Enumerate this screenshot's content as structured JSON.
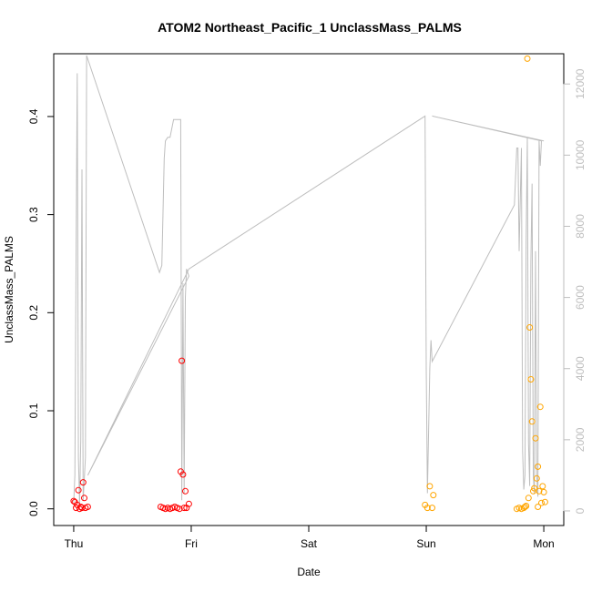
{
  "chart_data": {
    "type": "scatter",
    "title": "ATOM2 Northeast_Pacific_1 UnclassMass_PALMS",
    "xlabel": "Date",
    "ylabel": "UnclassMass_PALMS",
    "x_ticks": [
      "Thu",
      "Fri",
      "Sat",
      "Sun",
      "Mon"
    ],
    "y_ticks": [
      "0.0",
      "0.1",
      "0.2",
      "0.3",
      "0.4"
    ],
    "y2_ticks": [
      "0",
      "2000",
      "4000",
      "6000",
      "8000",
      "10000",
      "12000"
    ],
    "xlim_days": [
      -0.17,
      4.17
    ],
    "ylim": [
      -0.017,
      0.464
    ],
    "y2lim": [
      -410,
      12850
    ],
    "grid": false,
    "colors": {
      "red_series": "#ff0000",
      "orange_series": "#ffa500",
      "altitude_line": "#bebebe",
      "axis": "#000000",
      "y2_axis": "#bebebe"
    },
    "series": [
      {
        "color": "#ff0000",
        "points": [
          [
            0.0,
            0.008
          ],
          [
            0.01,
            0.007
          ],
          [
            0.02,
            0.001
          ],
          [
            0.03,
            0.004
          ],
          [
            0.04,
            0.019
          ],
          [
            0.05,
            0.0
          ],
          [
            0.06,
            0.002
          ],
          [
            0.07,
            0.001
          ],
          [
            0.08,
            0.027
          ],
          [
            0.09,
            0.011
          ],
          [
            0.1,
            0.001
          ],
          [
            0.12,
            0.002
          ],
          [
            0.74,
            0.002
          ],
          [
            0.76,
            0.001
          ],
          [
            0.78,
            0.0
          ],
          [
            0.8,
            0.001
          ],
          [
            0.82,
            0.0
          ],
          [
            0.84,
            0.001
          ],
          [
            0.86,
            0.002
          ],
          [
            0.88,
            0.001
          ],
          [
            0.9,
            0.0
          ],
          [
            0.91,
            0.038
          ],
          [
            0.92,
            0.151
          ],
          [
            0.93,
            0.035
          ],
          [
            0.94,
            0.001
          ],
          [
            0.95,
            0.018
          ],
          [
            0.96,
            0.001
          ],
          [
            0.98,
            0.005
          ]
        ]
      },
      {
        "color": "#ffa500",
        "points": [
          [
            2.99,
            0.004
          ],
          [
            3.01,
            0.001
          ],
          [
            3.03,
            0.023
          ],
          [
            3.05,
            0.001
          ],
          [
            3.06,
            0.014
          ],
          [
            3.77,
            0.0
          ],
          [
            3.79,
            0.001
          ],
          [
            3.81,
            0.0
          ],
          [
            3.83,
            0.001
          ],
          [
            3.84,
            0.002
          ],
          [
            3.85,
            0.003
          ],
          [
            3.86,
            0.459
          ],
          [
            3.87,
            0.011
          ],
          [
            3.88,
            0.185
          ],
          [
            3.89,
            0.132
          ],
          [
            3.9,
            0.089
          ],
          [
            3.91,
            0.018
          ],
          [
            3.92,
            0.021
          ],
          [
            3.93,
            0.072
          ],
          [
            3.94,
            0.031
          ],
          [
            3.95,
            0.043
          ],
          [
            3.95,
            0.002
          ],
          [
            3.96,
            0.018
          ],
          [
            3.97,
            0.104
          ],
          [
            3.98,
            0.006
          ],
          [
            3.99,
            0.023
          ],
          [
            4.0,
            0.017
          ],
          [
            4.01,
            0.007
          ]
        ]
      }
    ],
    "altitude_line": [
      [
        0.0,
        200
      ],
      [
        0.01,
        1000
      ],
      [
        0.02,
        7000
      ],
      [
        0.03,
        12300
      ],
      [
        0.04,
        1500
      ],
      [
        0.05,
        200
      ],
      [
        0.06,
        2000
      ],
      [
        0.07,
        9600
      ],
      [
        0.08,
        300
      ],
      [
        0.1,
        1500
      ],
      [
        0.11,
        12800
      ],
      [
        0.73,
        6700
      ],
      [
        0.75,
        6900
      ],
      [
        0.77,
        9900
      ],
      [
        0.78,
        10400
      ],
      [
        0.8,
        10500
      ],
      [
        0.82,
        10500
      ],
      [
        0.85,
        11000
      ],
      [
        0.91,
        11000
      ],
      [
        0.92,
        300
      ],
      [
        0.93,
        6400
      ],
      [
        0.94,
        500
      ],
      [
        0.95,
        6000
      ],
      [
        0.96,
        6800
      ],
      [
        0.98,
        6600
      ],
      [
        0.12,
        1000
      ],
      [
        0.98,
        6800
      ],
      [
        2.99,
        11100
      ],
      [
        3.0,
        4000
      ],
      [
        3.01,
        500
      ],
      [
        3.03,
        4000
      ],
      [
        3.04,
        4800
      ],
      [
        3.05,
        4200
      ],
      [
        3.75,
        8600
      ],
      [
        3.77,
        10200
      ],
      [
        3.78,
        10200
      ],
      [
        3.79,
        7300
      ],
      [
        3.81,
        10200
      ],
      [
        3.82,
        1700
      ],
      [
        3.83,
        600
      ],
      [
        3.84,
        1000
      ],
      [
        3.85,
        7600
      ],
      [
        3.86,
        10500
      ],
      [
        3.87,
        1900
      ],
      [
        3.88,
        700
      ],
      [
        3.89,
        7000
      ],
      [
        3.9,
        9200
      ],
      [
        3.91,
        1000
      ],
      [
        3.92,
        500
      ],
      [
        3.93,
        7300
      ],
      [
        3.94,
        1000
      ],
      [
        3.95,
        400
      ],
      [
        3.96,
        10400
      ],
      [
        3.97,
        9700
      ],
      [
        3.98,
        10400
      ],
      [
        3.05,
        11100
      ],
      [
        4.0,
        10400
      ]
    ]
  }
}
